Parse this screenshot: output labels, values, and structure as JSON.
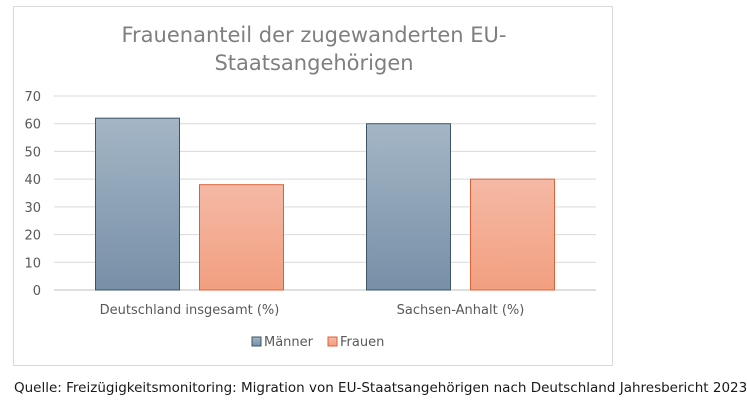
{
  "chart_data": {
    "type": "bar",
    "title_lines": [
      "Frauenanteil der zugewanderten EU-",
      "Staatsangehörigen"
    ],
    "categories": [
      "Deutschland insgesamt (%)",
      "Sachsen-Anhalt (%)"
    ],
    "series": [
      {
        "name": "Männer",
        "values": [
          62,
          60
        ],
        "color": "#8fa8bb"
      },
      {
        "name": "Frauen",
        "values": [
          38,
          40
        ],
        "color": "#f4a98e"
      }
    ],
    "ylim": [
      0,
      70
    ],
    "yticks": [
      0,
      10,
      20,
      30,
      40,
      50,
      60,
      70
    ],
    "grid": true,
    "legend_position": "bottom"
  },
  "source_note": "Quelle: Freizügigkeitsmonitoring: Migration von EU-Staatsangehörigen nach Deutschland Jahresbericht 2023"
}
